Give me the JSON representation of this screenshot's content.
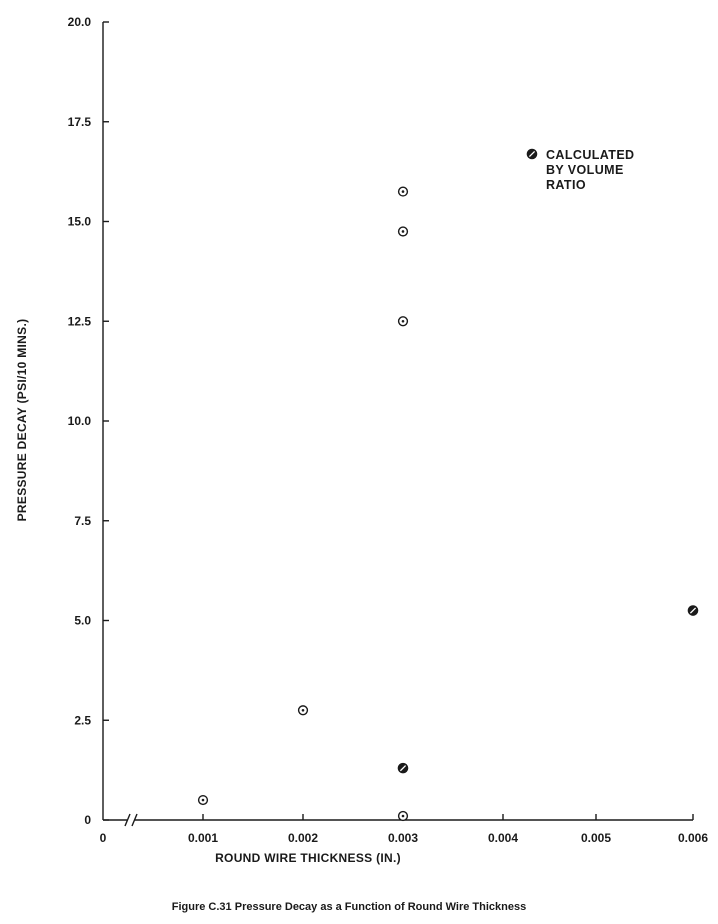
{
  "chart_data": {
    "type": "scatter",
    "title": "",
    "xlabel": "ROUND WIRE THICKNESS (IN.)",
    "ylabel": "PRESSURE DECAY (PSI/10 MINS.)",
    "xlim": [
      0,
      0.006
    ],
    "ylim": [
      0,
      20.0
    ],
    "x_ticks": [
      "0",
      "0.001",
      "0.002",
      "0.003",
      "0.004",
      "0.005",
      "0.006"
    ],
    "y_ticks": [
      "0",
      "2.5",
      "5.0",
      "7.5",
      "10.0",
      "12.5",
      "15.0",
      "17.5",
      "20.0"
    ],
    "axis_break": "x",
    "grid": false,
    "legend_position": "top-right",
    "legend": {
      "label_lines": [
        "CALCULATED",
        "BY VOLUME",
        "RATIO"
      ],
      "marker": "slashed-circle"
    },
    "series": [
      {
        "marker": "dotted-circle",
        "points": [
          {
            "x": 0.001,
            "y": 0.5
          },
          {
            "x": 0.002,
            "y": 2.75
          },
          {
            "x": 0.003,
            "y": 0.1
          },
          {
            "x": 0.003,
            "y": 12.5
          },
          {
            "x": 0.003,
            "y": 14.75
          },
          {
            "x": 0.003,
            "y": 15.75
          }
        ]
      },
      {
        "name": "CALCULATED BY VOLUME RATIO",
        "marker": "slashed-circle",
        "points": [
          {
            "x": 0.003,
            "y": 1.3
          },
          {
            "x": 0.006,
            "y": 5.25
          }
        ]
      }
    ]
  },
  "caption": "Figure C.31  Pressure Decay as a Function of Round Wire Thickness",
  "colors": {
    "ink": "#1a1a1a",
    "background": "#ffffff"
  }
}
